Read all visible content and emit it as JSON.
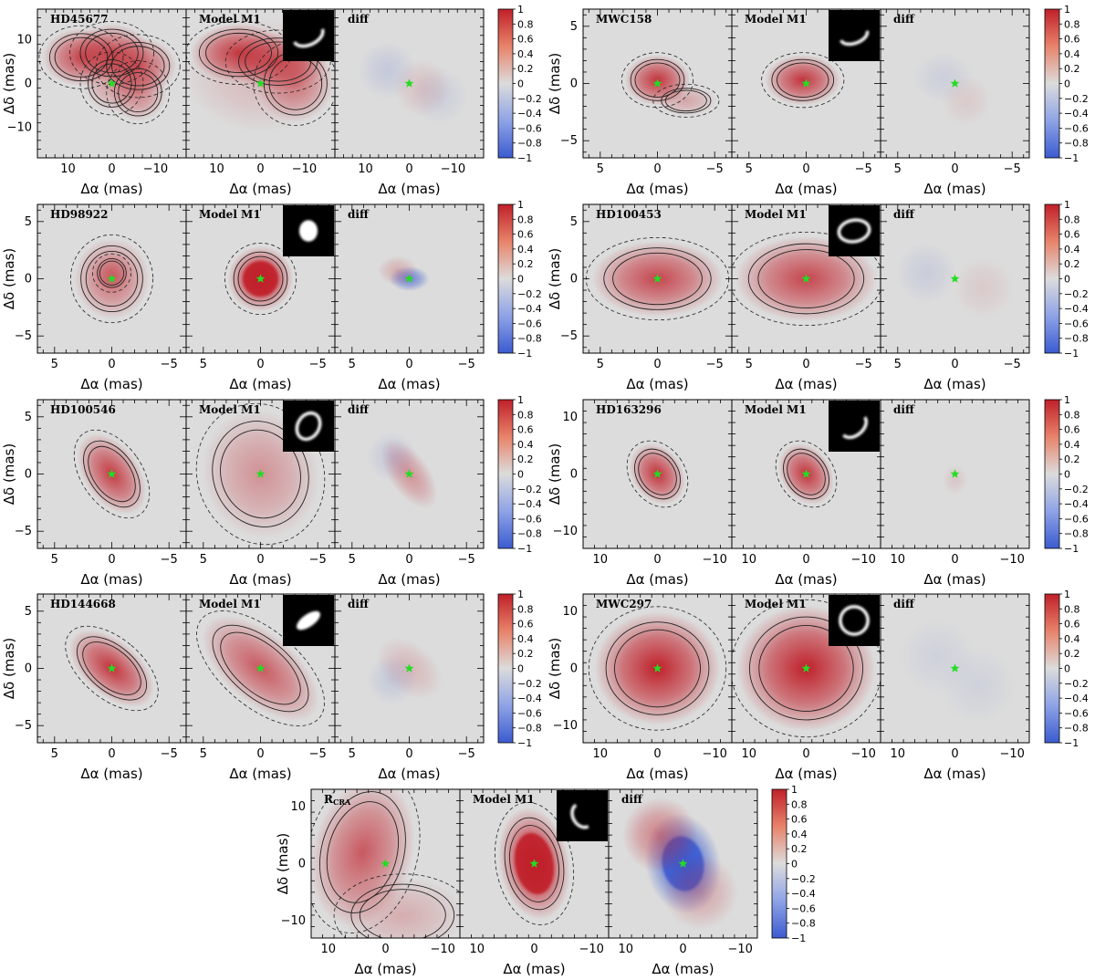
{
  "figure": {
    "axis_label_x": "Δα (mas)",
    "axis_label_y": "Δδ (mas)",
    "model_label": "Model M1",
    "diff_label": "diff",
    "colorbar_ticks": [
      "1",
      "0.8",
      "0.6",
      "0.4",
      "0.2",
      "0",
      "−0.2",
      "−0.4",
      "−0.6",
      "−0.8",
      "−1"
    ]
  },
  "colors": {
    "background": "#dcdcdc",
    "positive": "#c0202a",
    "negative": "#3b5bd0",
    "star": "#22dd22",
    "contour": "#222222"
  },
  "chart_data": [
    {
      "type": "heatmap",
      "target": "HD45677",
      "title": "HD45677",
      "panels": [
        "HD45677",
        "Model M1",
        "diff"
      ],
      "xlim": [
        17,
        -17
      ],
      "ylim": [
        -17,
        17
      ],
      "xticks": [
        "10",
        "0",
        "−10"
      ],
      "yticks": [
        "10",
        "0",
        "−10"
      ],
      "colorbar": [
        -1,
        1
      ],
      "obs": [
        {
          "x": 7,
          "y": 6,
          "sx": 4,
          "sy": 3,
          "a": 0.8
        },
        {
          "x": 0,
          "y": 7,
          "sx": 4,
          "sy": 3,
          "a": 0.75
        },
        {
          "x": -6,
          "y": 4,
          "sx": 4,
          "sy": 3,
          "a": 0.75
        },
        {
          "x": -6,
          "y": -2,
          "sx": 3,
          "sy": 3,
          "a": 0.5
        },
        {
          "x": 0,
          "y": 0,
          "sx": 3,
          "sy": 3,
          "a": 0.35
        }
      ],
      "model": [
        {
          "x": 5,
          "y": 7,
          "sx": 5,
          "sy": 3,
          "a": 0.85
        },
        {
          "x": -4,
          "y": 5,
          "sx": 5,
          "sy": 3,
          "a": 0.7
        },
        {
          "x": -8,
          "y": 0,
          "sx": 4,
          "sy": 4,
          "a": 0.5
        },
        {
          "x": 0,
          "y": 2,
          "sx": 8,
          "sy": 6,
          "a": 0.2
        }
      ],
      "diff": [
        {
          "x": 5,
          "y": 3,
          "sx": 3,
          "sy": 3,
          "a": -0.15
        },
        {
          "x": -3,
          "y": -1,
          "sx": 3,
          "sy": 3,
          "a": 0.15
        },
        {
          "x": -7,
          "y": -3,
          "sx": 3,
          "sy": 3,
          "a": -0.1
        }
      ],
      "inset": {
        "type": "arc",
        "rx": 0.5,
        "ry": 0.3,
        "rot": -25
      }
    },
    {
      "type": "heatmap",
      "target": "MWC158",
      "title": "MWC158",
      "panels": [
        "MWC158",
        "Model M1",
        "diff"
      ],
      "xlim": [
        6.5,
        -6.5
      ],
      "ylim": [
        -6.5,
        6.5
      ],
      "xticks": [
        "5",
        "0",
        "−5"
      ],
      "yticks": [
        "5",
        "0",
        "−5"
      ],
      "colorbar": [
        -1,
        1
      ],
      "obs": [
        {
          "x": 0,
          "y": 0.3,
          "sx": 1.3,
          "sy": 1.0,
          "a": 0.9
        },
        {
          "x": -2.5,
          "y": -1.5,
          "sx": 1.2,
          "sy": 0.6,
          "a": 0.3
        }
      ],
      "model": [
        {
          "x": 0.3,
          "y": 0.3,
          "sx": 1.5,
          "sy": 1.0,
          "a": 0.9
        }
      ],
      "diff": [
        {
          "x": 1,
          "y": 0.5,
          "sx": 1.2,
          "sy": 1,
          "a": -0.1
        },
        {
          "x": -1,
          "y": -1.5,
          "sx": 1,
          "sy": 1,
          "a": 0.1
        }
      ],
      "inset": {
        "type": "arc",
        "rx": 0.45,
        "ry": 0.25,
        "rot": -20
      }
    },
    {
      "type": "heatmap",
      "target": "HD98922",
      "title": "HD98922",
      "panels": [
        "HD98922",
        "Model M1",
        "diff"
      ],
      "xlim": [
        6.5,
        -6.5
      ],
      "ylim": [
        -6.5,
        6.5
      ],
      "xticks": [
        "5",
        "0",
        "−5"
      ],
      "yticks": [
        "5",
        "0",
        "−5"
      ],
      "colorbar": [
        -1,
        1
      ],
      "obs": [
        {
          "x": 0,
          "y": 0,
          "sx": 1.5,
          "sy": 1.6,
          "a": 0.6
        },
        {
          "x": 0,
          "y": 0.5,
          "sx": 0.7,
          "sy": 0.7,
          "a": 0.3
        }
      ],
      "model": [
        {
          "x": 0,
          "y": 0,
          "sx": 1.3,
          "sy": 1.3,
          "a": 1.3
        }
      ],
      "diff": [
        {
          "x": 0,
          "y": 0,
          "sx": 0.8,
          "sy": 0.5,
          "a": -0.7
        },
        {
          "x": 1,
          "y": 0.7,
          "sx": 0.8,
          "sy": 0.6,
          "a": 0.25
        }
      ],
      "inset": {
        "type": "blob",
        "rx": 0.3,
        "ry": 0.35,
        "rot": 0
      }
    },
    {
      "type": "heatmap",
      "target": "HD100453",
      "title": "HD100453",
      "panels": [
        "HD100453",
        "Model M1",
        "diff"
      ],
      "xlim": [
        6.5,
        -6.5
      ],
      "ylim": [
        -6.5,
        6.5
      ],
      "xticks": [
        "5",
        "0",
        "−5"
      ],
      "yticks": [
        "5",
        "0",
        "−5"
      ],
      "colorbar": [
        -1,
        1
      ],
      "obs": [
        {
          "x": 0,
          "y": 0,
          "sx": 2.6,
          "sy": 1.5,
          "a": 0.8
        }
      ],
      "model": [
        {
          "x": 0,
          "y": 0,
          "sx": 2.8,
          "sy": 1.7,
          "a": 0.8
        }
      ],
      "diff": [
        {
          "x": 2.5,
          "y": 0.5,
          "sx": 1.2,
          "sy": 1.2,
          "a": -0.12
        },
        {
          "x": -2.5,
          "y": -0.8,
          "sx": 1.2,
          "sy": 1.2,
          "a": 0.1
        }
      ],
      "inset": {
        "type": "ring",
        "rx": 0.5,
        "ry": 0.35,
        "rot": -10
      }
    },
    {
      "type": "heatmap",
      "target": "HD100546",
      "title": "HD100546",
      "panels": [
        "HD100546",
        "Model M1",
        "diff"
      ],
      "xlim": [
        6.5,
        -6.5
      ],
      "ylim": [
        -6.5,
        6.5
      ],
      "xticks": [
        "5",
        "0",
        "−5"
      ],
      "yticks": [
        "5",
        "0",
        "−5"
      ],
      "colorbar": [
        -1,
        1
      ],
      "obs": [
        {
          "x": 0,
          "y": 0,
          "sx": 1.1,
          "sy": 1.8,
          "a": 0.85,
          "rot": -35
        }
      ],
      "model": [
        {
          "x": 0,
          "y": 0,
          "sx": 2.3,
          "sy": 2.6,
          "a": 0.4,
          "rot": -20
        }
      ],
      "diff": [
        {
          "x": 0,
          "y": 0,
          "sx": 0.8,
          "sy": 1.6,
          "a": 0.4,
          "rot": -35
        },
        {
          "x": 1.5,
          "y": 1.5,
          "sx": 1,
          "sy": 1,
          "a": -0.15
        }
      ],
      "inset": {
        "type": "ring",
        "rx": 0.35,
        "ry": 0.45,
        "rot": 30
      }
    },
    {
      "type": "heatmap",
      "target": "HD163296",
      "title": "HD163296",
      "panels": [
        "HD163296",
        "Model M1",
        "diff"
      ],
      "xlim": [
        13,
        -13
      ],
      "ylim": [
        -13,
        13
      ],
      "xticks": [
        "10",
        "0",
        "−10"
      ],
      "yticks": [
        "10",
        "0",
        "−10"
      ],
      "colorbar": [
        -1,
        1
      ],
      "obs": [
        {
          "x": 0,
          "y": 0,
          "sx": 2.0,
          "sy": 2.6,
          "a": 0.9,
          "rot": -35
        }
      ],
      "model": [
        {
          "x": 0,
          "y": 0,
          "sx": 2.0,
          "sy": 2.6,
          "a": 0.9,
          "rot": -35
        }
      ],
      "diff": [
        {
          "x": 0,
          "y": -1,
          "sx": 1,
          "sy": 1.2,
          "a": 0.12
        }
      ],
      "inset": {
        "type": "arc",
        "rx": 0.45,
        "ry": 0.3,
        "rot": -40
      }
    },
    {
      "type": "heatmap",
      "target": "HD144668",
      "title": "HD144668",
      "panels": [
        "HD144668",
        "Model M1",
        "diff"
      ],
      "xlim": [
        6.5,
        -6.5
      ],
      "ylim": [
        -6.5,
        6.5
      ],
      "xticks": [
        "5",
        "0",
        "−5"
      ],
      "yticks": [
        "5",
        "0",
        "−5"
      ],
      "colorbar": [
        -1,
        1
      ],
      "obs": [
        {
          "x": 0,
          "y": 0,
          "sx": 1.1,
          "sy": 2.0,
          "a": 0.9,
          "rot": -50
        }
      ],
      "model": [
        {
          "x": 0,
          "y": 0,
          "sx": 1.4,
          "sy": 2.8,
          "a": 0.7,
          "rot": -50
        }
      ],
      "diff": [
        {
          "x": 0,
          "y": 0,
          "sx": 1,
          "sy": 1.5,
          "a": 0.2,
          "rot": -50
        },
        {
          "x": 1.5,
          "y": -1,
          "sx": 1,
          "sy": 1,
          "a": -0.15
        }
      ],
      "inset": {
        "type": "blob",
        "rx": 0.45,
        "ry": 0.2,
        "rot": -35
      }
    },
    {
      "type": "heatmap",
      "target": "MWC297",
      "title": "MWC297",
      "panels": [
        "MWC297",
        "Model M1",
        "diff"
      ],
      "xlim": [
        13,
        -13
      ],
      "ylim": [
        -13,
        13
      ],
      "xticks": [
        "10",
        "0",
        "−10"
      ],
      "yticks": [
        "10",
        "0",
        "−10"
      ],
      "colorbar": [
        -1,
        1
      ],
      "obs": [
        {
          "x": 0,
          "y": 0,
          "sx": 5,
          "sy": 4.5,
          "a": 1.0
        }
      ],
      "model": [
        {
          "x": 0,
          "y": 0,
          "sx": 5.5,
          "sy": 5.0,
          "a": 1.0
        }
      ],
      "diff": [
        {
          "x": 3,
          "y": 2,
          "sx": 3,
          "sy": 3,
          "a": -0.08
        },
        {
          "x": -4,
          "y": -3,
          "sx": 3,
          "sy": 3,
          "a": -0.08
        }
      ],
      "inset": {
        "type": "ring",
        "rx": 0.45,
        "ry": 0.45,
        "rot": 0
      }
    },
    {
      "type": "heatmap",
      "target": "RCRA",
      "title": "R",
      "title_sub": "CRA",
      "panels": [
        "RCRA",
        "Model M1",
        "diff"
      ],
      "xlim": [
        13,
        -13
      ],
      "ylim": [
        -13,
        13
      ],
      "xticks": [
        "10",
        "0",
        "−10"
      ],
      "yticks": [
        "10",
        "0",
        "−10"
      ],
      "colorbar": [
        -1,
        1
      ],
      "obs": [
        {
          "x": 4,
          "y": 2,
          "sx": 4,
          "sy": 6,
          "a": 0.7,
          "rot": 15
        },
        {
          "x": -3,
          "y": -9,
          "sx": 5,
          "sy": 3,
          "a": 0.25
        }
      ],
      "model": [
        {
          "x": 0,
          "y": 0,
          "sx": 2.8,
          "sy": 4.5,
          "a": 2.6,
          "rot": -10
        }
      ],
      "diff": [
        {
          "x": 0,
          "y": 0,
          "sx": 3,
          "sy": 4,
          "a": -1.5,
          "rot": -10
        },
        {
          "x": 4,
          "y": 5,
          "sx": 3,
          "sy": 3,
          "a": 0.5
        },
        {
          "x": -3,
          "y": -5,
          "sx": 3,
          "sy": 3,
          "a": 0.3
        }
      ],
      "inset": {
        "type": "arc",
        "rx": 0.4,
        "ry": 0.3,
        "rot": 60
      }
    }
  ]
}
